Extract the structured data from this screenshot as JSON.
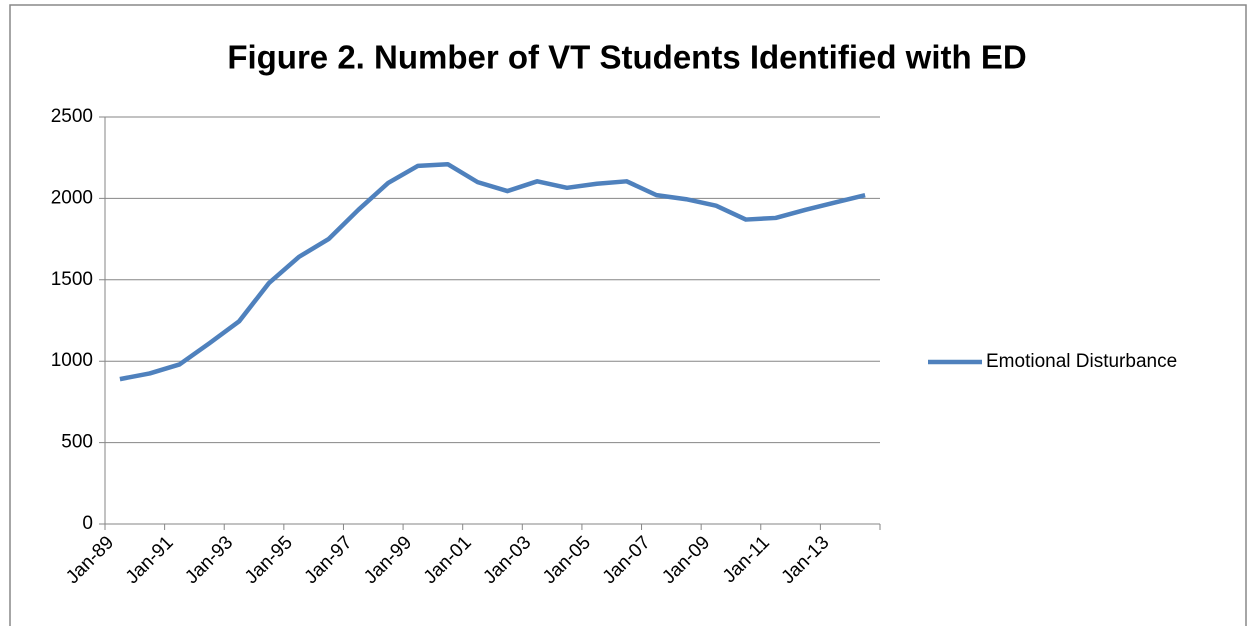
{
  "chart_data": {
    "type": "line",
    "title": "Figure 2.  Number of VT Students Identified with ED",
    "x": [
      1989.5,
      1990.5,
      1991.5,
      1992.5,
      1993.5,
      1994.5,
      1995.5,
      1996.5,
      1997.5,
      1998.5,
      1999.5,
      2000.5,
      2001.5,
      2002.5,
      2003.5,
      2004.5,
      2005.5,
      2006.5,
      2007.5,
      2008.5,
      2009.5,
      2010.5,
      2011.5,
      2012.5,
      2013.5,
      2014.5
    ],
    "series": [
      {
        "name": "Emotional Disturbance",
        "color": "#4f81bd",
        "values": [
          890,
          925,
          980,
          1110,
          1245,
          1480,
          1640,
          1750,
          1930,
          2095,
          2200,
          2210,
          2100,
          2045,
          2105,
          2065,
          2090,
          2105,
          2020,
          1995,
          1955,
          1870,
          1880,
          1930,
          1975,
          2020
        ]
      }
    ],
    "xlim": [
      1989,
      2015
    ],
    "xticks": [
      {
        "value": 1989,
        "label": "Jan-89"
      },
      {
        "value": 1991,
        "label": "Jan-91"
      },
      {
        "value": 1993,
        "label": "Jan-93"
      },
      {
        "value": 1995,
        "label": "Jan-95"
      },
      {
        "value": 1997,
        "label": "Jan-97"
      },
      {
        "value": 1999,
        "label": "Jan-99"
      },
      {
        "value": 2001,
        "label": "Jan-01"
      },
      {
        "value": 2003,
        "label": "Jan-03"
      },
      {
        "value": 2005,
        "label": "Jan-05"
      },
      {
        "value": 2007,
        "label": "Jan-07"
      },
      {
        "value": 2009,
        "label": "Jan-09"
      },
      {
        "value": 2011,
        "label": "Jan-11"
      },
      {
        "value": 2013,
        "label": "Jan-13"
      }
    ],
    "ylim": [
      0,
      2500
    ],
    "yticks": [
      0,
      500,
      1000,
      1500,
      2000,
      2500
    ],
    "grid": true,
    "legend": "right"
  }
}
